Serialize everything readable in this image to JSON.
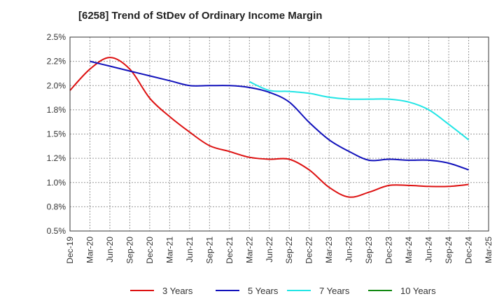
{
  "title": "[6258]  Trend of StDev of Ordinary Income Margin",
  "chart_data": {
    "type": "line",
    "x_categories": [
      "Dec-19",
      "Mar-20",
      "Jun-20",
      "Sep-20",
      "Dec-20",
      "Mar-21",
      "Jun-21",
      "Sep-21",
      "Dec-21",
      "Mar-22",
      "Jun-22",
      "Sep-22",
      "Dec-22",
      "Mar-23",
      "Jun-23",
      "Sep-23",
      "Dec-23",
      "Mar-24",
      "Jun-24",
      "Sep-24",
      "Dec-24",
      "Mar-25"
    ],
    "y_ticks": [
      "0.5%",
      "0.8%",
      "1.0%",
      "1.2%",
      "1.5%",
      "1.8%",
      "2.0%",
      "2.2%",
      "2.5%"
    ],
    "ylim": [
      0.5,
      2.5
    ],
    "grid": true,
    "legend_position": "bottom",
    "series": [
      {
        "name": "3 Years",
        "color": "#dd1111",
        "values": [
          1.95,
          2.17,
          2.29,
          2.17,
          1.87,
          1.68,
          1.52,
          1.38,
          1.32,
          1.26,
          1.24,
          1.24,
          1.13,
          0.95,
          0.85,
          0.9,
          0.97,
          0.97,
          0.96,
          0.96,
          0.98,
          null
        ]
      },
      {
        "name": "5 Years",
        "color": "#1111bb",
        "values": [
          null,
          2.25,
          2.2,
          2.15,
          2.1,
          2.05,
          2.0,
          2.0,
          2.0,
          1.98,
          1.93,
          1.83,
          1.62,
          1.44,
          1.32,
          1.23,
          1.24,
          1.23,
          1.23,
          1.2,
          1.13,
          null
        ]
      },
      {
        "name": "7 Years",
        "color": "#22e5e5",
        "values": [
          null,
          null,
          null,
          null,
          null,
          null,
          null,
          null,
          null,
          2.04,
          1.95,
          1.94,
          1.92,
          1.88,
          1.86,
          1.86,
          1.86,
          1.83,
          1.75,
          1.6,
          1.44,
          null
        ]
      },
      {
        "name": "10 Years",
        "color": "#118811",
        "values": [
          null,
          null,
          null,
          null,
          null,
          null,
          null,
          null,
          null,
          null,
          null,
          null,
          null,
          null,
          null,
          null,
          null,
          null,
          null,
          null,
          null,
          null
        ]
      }
    ]
  }
}
